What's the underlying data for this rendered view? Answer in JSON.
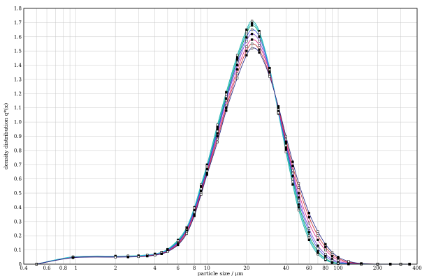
{
  "chart_data": {
    "type": "line",
    "title": "",
    "xlabel": "particle size / µm",
    "ylabel": "density distribution q*(x)",
    "xscale": "log",
    "xlim": [
      0.4,
      400
    ],
    "ylim": [
      0,
      1.8
    ],
    "grid": true,
    "legend": "none",
    "x_tick_labels": [
      "0.4",
      "0.6",
      "0.8",
      "1",
      "2",
      "4",
      "6",
      "8",
      "10",
      "20",
      "40",
      "60",
      "80",
      "100",
      "200",
      "400"
    ],
    "y_tick_labels": [
      "0",
      "0.1",
      "0.2",
      "0.3",
      "0.4",
      "0.5",
      "0.6",
      "0.7",
      "0.8",
      "0.9",
      "1.0",
      "1.1",
      "1.2",
      "1.3",
      "1.4",
      "1.5",
      "1.6",
      "1.7",
      "1.8"
    ],
    "x": [
      0.5,
      0.95,
      2,
      2.5,
      3,
      3.5,
      4,
      4.5,
      5,
      6,
      7,
      8,
      9,
      10,
      12,
      14,
      17,
      20,
      22,
      25,
      30,
      35,
      40,
      45,
      50,
      60,
      70,
      80,
      90,
      100,
      120,
      150,
      200,
      250,
      300,
      350
    ],
    "series": [
      {
        "values": [
          0.0,
          0.05,
          0.055,
          0.056,
          0.058,
          0.063,
          0.07,
          0.082,
          0.1,
          0.16,
          0.25,
          0.39,
          0.54,
          0.68,
          0.95,
          1.18,
          1.44,
          1.62,
          1.68,
          1.62,
          1.38,
          1.07,
          0.82,
          0.6,
          0.42,
          0.2,
          0.09,
          0.04,
          0.015,
          0.006,
          0.002,
          0.0,
          0.0,
          0.0,
          0.0,
          0.0
        ]
      },
      {
        "values": [
          0.0,
          0.052,
          0.057,
          0.058,
          0.06,
          0.065,
          0.072,
          0.085,
          0.105,
          0.17,
          0.26,
          0.4,
          0.56,
          0.7,
          0.98,
          1.21,
          1.47,
          1.65,
          1.71,
          1.64,
          1.38,
          1.06,
          0.79,
          0.56,
          0.38,
          0.17,
          0.07,
          0.03,
          0.01,
          0.004,
          0.001,
          0.0,
          0.0,
          0.0,
          0.0,
          0.0
        ]
      },
      {
        "values": [
          0.0,
          0.048,
          0.052,
          0.053,
          0.056,
          0.061,
          0.068,
          0.078,
          0.095,
          0.15,
          0.24,
          0.37,
          0.52,
          0.66,
          0.92,
          1.15,
          1.4,
          1.57,
          1.62,
          1.57,
          1.36,
          1.08,
          0.85,
          0.64,
          0.47,
          0.25,
          0.13,
          0.07,
          0.035,
          0.018,
          0.006,
          0.002,
          0.0,
          0.0,
          0.0,
          0.0
        ]
      },
      {
        "values": [
          0.0,
          0.049,
          0.053,
          0.054,
          0.057,
          0.062,
          0.069,
          0.08,
          0.098,
          0.155,
          0.245,
          0.38,
          0.53,
          0.67,
          0.935,
          1.165,
          1.42,
          1.595,
          1.65,
          1.6,
          1.37,
          1.075,
          0.835,
          0.62,
          0.445,
          0.225,
          0.11,
          0.055,
          0.025,
          0.011,
          0.004,
          0.001,
          0.0,
          0.0,
          0.0,
          0.0
        ]
      },
      {
        "values": [
          0.0,
          0.047,
          0.051,
          0.052,
          0.054,
          0.059,
          0.066,
          0.076,
          0.092,
          0.145,
          0.235,
          0.36,
          0.51,
          0.65,
          0.9,
          1.12,
          1.37,
          1.53,
          1.58,
          1.54,
          1.35,
          1.09,
          0.86,
          0.66,
          0.5,
          0.29,
          0.17,
          0.1,
          0.055,
          0.03,
          0.01,
          0.003,
          0.0,
          0.0,
          0.0,
          0.0
        ]
      },
      {
        "values": [
          0.0,
          0.046,
          0.05,
          0.051,
          0.053,
          0.058,
          0.064,
          0.074,
          0.09,
          0.14,
          0.225,
          0.35,
          0.5,
          0.64,
          0.88,
          1.1,
          1.34,
          1.5,
          1.55,
          1.51,
          1.33,
          1.1,
          0.88,
          0.69,
          0.54,
          0.33,
          0.2,
          0.12,
          0.07,
          0.04,
          0.015,
          0.004,
          0.0,
          0.0,
          0.0,
          0.0
        ]
      },
      {
        "values": [
          0.0,
          0.051,
          0.056,
          0.057,
          0.059,
          0.064,
          0.071,
          0.083,
          0.102,
          0.165,
          0.255,
          0.395,
          0.55,
          0.69,
          0.965,
          1.195,
          1.455,
          1.635,
          1.695,
          1.63,
          1.38,
          1.065,
          0.805,
          0.58,
          0.4,
          0.185,
          0.08,
          0.035,
          0.012,
          0.005,
          0.001,
          0.0,
          0.0,
          0.0,
          0.0,
          0.0
        ]
      },
      {
        "values": [
          0.0,
          0.045,
          0.049,
          0.05,
          0.052,
          0.056,
          0.062,
          0.072,
          0.087,
          0.135,
          0.215,
          0.34,
          0.49,
          0.63,
          0.86,
          1.08,
          1.31,
          1.47,
          1.52,
          1.49,
          1.32,
          1.11,
          0.9,
          0.72,
          0.57,
          0.36,
          0.23,
          0.14,
          0.085,
          0.05,
          0.02,
          0.005,
          0.0,
          0.0,
          0.0,
          0.0
        ]
      }
    ]
  },
  "style": {
    "background": "#ffffff",
    "grid_color": "#c8c8c8",
    "axis_color": "#000000",
    "series_colors": [
      "#00a050",
      "#1ab0a0",
      "#7a3fd0",
      "#3050e0",
      "#e02080",
      "#c03030",
      "#30c0e0",
      "#202080"
    ]
  }
}
